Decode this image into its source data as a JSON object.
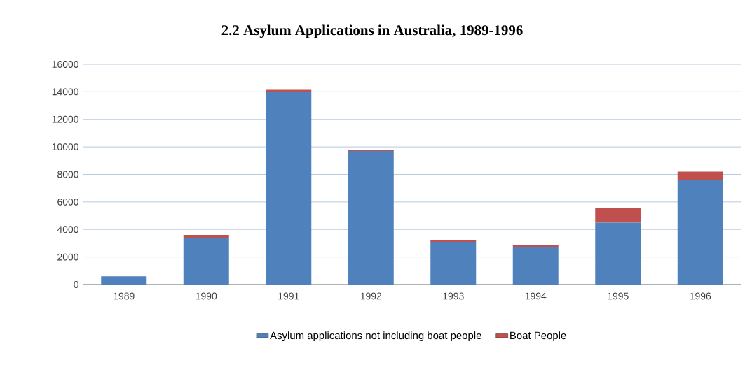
{
  "chart_data": {
    "type": "bar",
    "title": "2.2 Asylum Applications in Australia, 1989-1996",
    "categories": [
      "1989",
      "1990",
      "1991",
      "1992",
      "1993",
      "1994",
      "1995",
      "1996"
    ],
    "series": [
      {
        "name": "Asylum applications not including boat people",
        "color": "#4f81bd",
        "values": [
          600,
          3400,
          14000,
          9700,
          3100,
          2700,
          4500,
          7600
        ]
      },
      {
        "name": "Boat People",
        "color": "#c0504d",
        "values": [
          0,
          200,
          150,
          100,
          150,
          200,
          1050,
          600
        ]
      }
    ],
    "stacked": true,
    "ylim": [
      0,
      16000
    ],
    "yticks": [
      0,
      2000,
      4000,
      6000,
      8000,
      10000,
      12000,
      14000,
      16000
    ],
    "grid": "y",
    "legend": "bottom"
  }
}
